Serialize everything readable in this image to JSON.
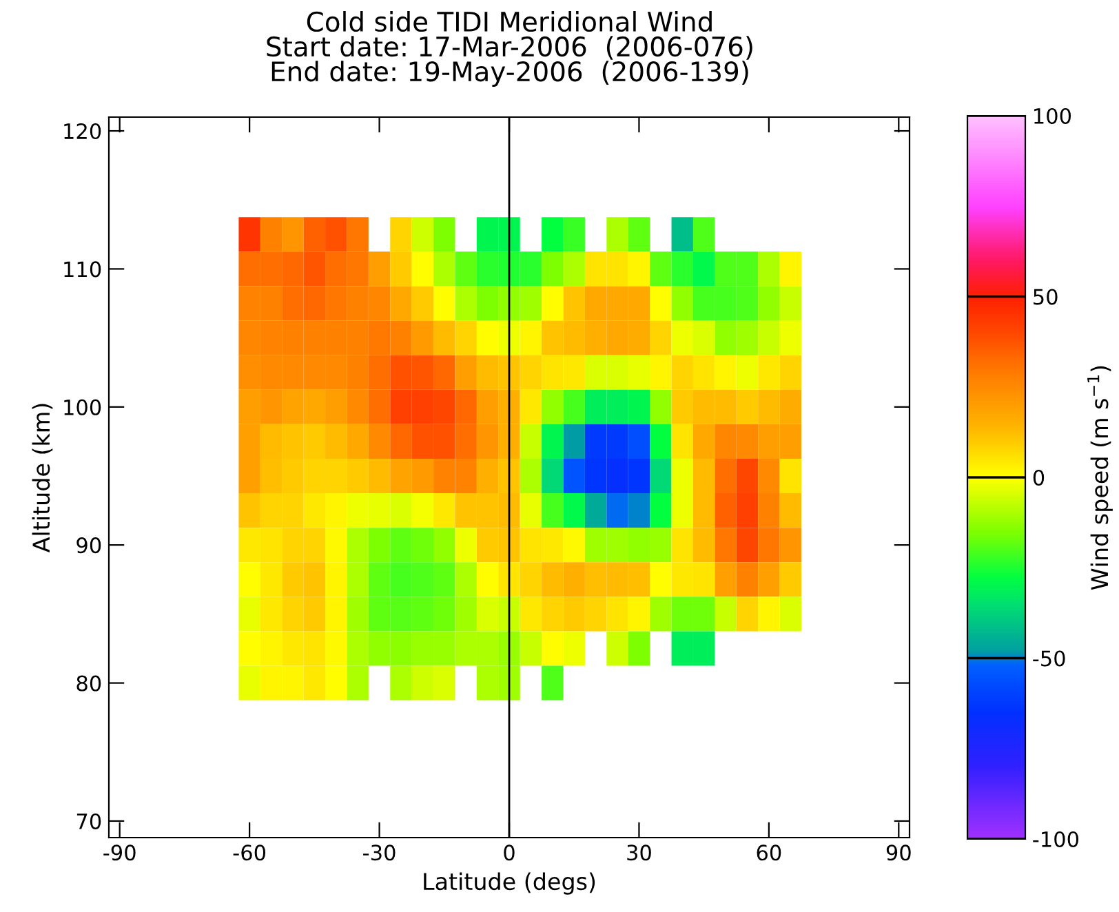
{
  "chart_data": {
    "type": "heatmap",
    "title": "Cold side TIDI Meridional Wind",
    "subtitle": "Start date: 17-Mar-2006  (2006-076)\nEnd date: 19-May-2006  (2006-139)",
    "xlabel": "Latitude (degs)",
    "ylabel": "Altitude (km)",
    "clabel": "Wind speed (m s$^{−1}$)",
    "x": [
      -60,
      -55,
      -50,
      -45,
      -40,
      -35,
      -30,
      -25,
      -20,
      -15,
      -10,
      -5,
      0,
      5,
      10,
      15,
      20,
      25,
      30,
      35,
      40,
      45,
      50,
      55,
      60,
      65
    ],
    "y": [
      112.5,
      110,
      107.5,
      105,
      102.5,
      100,
      97.5,
      95,
      92.5,
      90,
      87.5,
      85,
      82.5,
      80
    ],
    "cells": [
      [
        45,
        28,
        22,
        35,
        38,
        30,
        null,
        8,
        -6,
        -15,
        null,
        -30,
        -30,
        null,
        -28,
        -22,
        null,
        -10,
        -18,
        null,
        -42,
        -20,
        null,
        null,
        null,
        null
      ],
      [
        32,
        32,
        33,
        37,
        32,
        30,
        20,
        10,
        0,
        -10,
        -18,
        -24,
        -25,
        -24,
        -15,
        -10,
        5,
        5,
        2,
        -18,
        -24,
        -29,
        -20,
        -20,
        -10,
        2
      ],
      [
        27,
        28,
        32,
        33,
        30,
        28,
        26,
        17,
        10,
        0,
        -10,
        -15,
        -13,
        -11,
        0,
        11,
        17,
        17,
        17,
        0,
        -13,
        -21,
        -21,
        -20,
        -13,
        -7
      ],
      [
        26,
        27,
        28,
        28,
        28,
        28,
        29,
        28,
        21,
        13,
        8,
        0,
        -2,
        2,
        11,
        13,
        15,
        17,
        16,
        8,
        -2,
        -4,
        -13,
        -11,
        -7,
        -2
      ],
      [
        24,
        25,
        25,
        25,
        25,
        28,
        32,
        38,
        37,
        33,
        20,
        13,
        11,
        8,
        5,
        4,
        -4,
        -4,
        -3,
        2,
        8,
        5,
        2,
        -2,
        4,
        8
      ],
      [
        20,
        22,
        18,
        17,
        20,
        25,
        32,
        42,
        42,
        40,
        33,
        20,
        15,
        4,
        -13,
        -21,
        -32,
        -32,
        -30,
        -13,
        10,
        13,
        13,
        10,
        13,
        16
      ],
      [
        19,
        13,
        11,
        10,
        13,
        17,
        25,
        33,
        38,
        38,
        32,
        22,
        15,
        -7,
        -30,
        -48,
        -62,
        -62,
        -57,
        -28,
        5,
        17,
        26,
        25,
        20,
        20
      ],
      [
        19,
        12,
        10,
        8,
        8,
        10,
        13,
        18,
        21,
        27,
        27,
        15,
        11,
        -10,
        -36,
        -55,
        -64,
        -66,
        -64,
        -36,
        -2,
        13,
        32,
        40,
        25,
        5
      ],
      [
        11,
        8,
        8,
        4,
        2,
        -2,
        -3,
        -4,
        -1,
        4,
        11,
        11,
        13,
        -3,
        -21,
        -29,
        -46,
        -51,
        -50,
        -28,
        -2,
        13,
        35,
        42,
        28,
        13
      ],
      [
        4,
        5,
        8,
        8,
        1,
        -10,
        -15,
        -18,
        -17,
        -13,
        -2,
        10,
        11,
        5,
        4,
        1,
        -11,
        -11,
        -13,
        -12,
        5,
        13,
        30,
        40,
        30,
        22
      ],
      [
        0,
        4,
        10,
        11,
        2,
        -10,
        -18,
        -21,
        -20,
        -18,
        -10,
        0,
        5,
        8,
        13,
        15,
        12,
        13,
        12,
        0,
        4,
        5,
        19,
        28,
        19,
        10
      ],
      [
        -3,
        4,
        8,
        10,
        2,
        -11,
        -18,
        -19,
        -18,
        -17,
        -11,
        -4,
        -7,
        4,
        8,
        10,
        8,
        5,
        2,
        -11,
        -17,
        -17,
        -7,
        8,
        2,
        -4
      ],
      [
        0,
        2,
        4,
        5,
        1,
        -10,
        -13,
        -14,
        -12,
        -12,
        -10,
        -10,
        -12,
        -7,
        0,
        -2,
        null,
        -6,
        -15,
        null,
        -32,
        -32,
        null,
        null,
        null,
        null
      ],
      [
        -3,
        2,
        2,
        4,
        0,
        -10,
        null,
        -10,
        -6,
        -4,
        null,
        -10,
        -11,
        null,
        -20,
        null,
        null,
        null,
        null,
        null,
        null,
        null,
        null,
        null,
        null,
        null
      ]
    ],
    "xlim": [
      -92.5,
      92.5
    ],
    "ylim": [
      68.8,
      121
    ],
    "xticks": [
      -90,
      -60,
      -30,
      0,
      30,
      60,
      90
    ],
    "yticks": [
      70,
      80,
      90,
      100,
      110,
      120
    ],
    "clim": [
      -100,
      100
    ],
    "cticks": [
      -100,
      -50,
      0,
      50,
      100
    ],
    "ref_lines": [
      {
        "axis": "x",
        "value": 0,
        "color": "#000000"
      }
    ],
    "grid": false,
    "legend": false
  }
}
